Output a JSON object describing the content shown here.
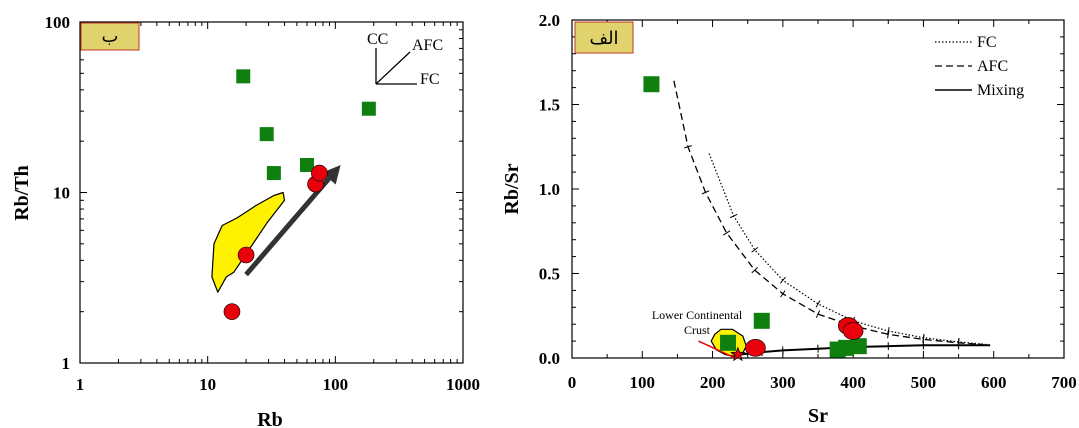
{
  "colors": {
    "green": "#0f7f0f",
    "red": "#e8000a",
    "yellow": "#fff200",
    "badge_bg": "#e0d36e",
    "badge_border": "#c23a2a",
    "arrow": "#333333"
  },
  "chart_data": [
    {
      "type": "scatter",
      "panel_label": "ب",
      "xlabel": "Rb",
      "ylabel": "Rb/Th",
      "xscale": "log",
      "yscale": "log",
      "xlim": [
        1,
        1000
      ],
      "ylim": [
        1,
        100
      ],
      "xticks": [
        {
          "v": 1,
          "t": "1"
        },
        {
          "v": 10,
          "t": "10"
        },
        {
          "v": 100,
          "t": "100"
        },
        {
          "v": 1000,
          "t": "1000"
        }
      ],
      "yticks": [
        {
          "v": 1,
          "t": "1"
        },
        {
          "v": 10,
          "t": "10"
        },
        {
          "v": 100,
          "t": "100"
        }
      ],
      "series": [
        {
          "marker": "square",
          "color": "green",
          "points": [
            [
              19,
              48
            ],
            [
              29,
              22
            ],
            [
              33,
              13
            ],
            [
              60,
              14.5
            ],
            [
              183,
              31
            ]
          ]
        },
        {
          "marker": "circle",
          "color": "red",
          "points": [
            [
              15.5,
              2
            ],
            [
              20,
              4.3
            ],
            [
              70,
              11.2
            ],
            [
              75,
              13
            ]
          ]
        }
      ],
      "vector_labels": {
        "cc": "CC",
        "afc": "AFC",
        "fc": "FC"
      },
      "field_polygon": [
        [
          14,
          3.2
        ],
        [
          12,
          2.6
        ],
        [
          10.8,
          3.2
        ],
        [
          11.2,
          5
        ],
        [
          13,
          6.4
        ],
        [
          17,
          7.1
        ],
        [
          24,
          8.4
        ],
        [
          33,
          9.6
        ],
        [
          39,
          10
        ],
        [
          40,
          9
        ],
        [
          29,
          6.6
        ],
        [
          21,
          4.6
        ],
        [
          16,
          3.4
        ]
      ],
      "trend_arrow": [
        [
          20,
          3.3
        ],
        [
          110,
          14.5
        ]
      ]
    },
    {
      "type": "scatter",
      "panel_label": "الف",
      "xlabel": "Sr",
      "ylabel": "Rb/Sr",
      "xlim": [
        0,
        700
      ],
      "ylim": [
        0,
        2.0
      ],
      "xticks": [
        {
          "v": 0,
          "t": "0"
        },
        {
          "v": 100,
          "t": "100"
        },
        {
          "v": 200,
          "t": "200"
        },
        {
          "v": 300,
          "t": "300"
        },
        {
          "v": 400,
          "t": "400"
        },
        {
          "v": 500,
          "t": "500"
        },
        {
          "v": 600,
          "t": "600"
        },
        {
          "v": 700,
          "t": "700"
        }
      ],
      "yticks": [
        {
          "v": 0,
          "t": "0.0"
        },
        {
          "v": 0.5,
          "t": "0.5"
        },
        {
          "v": 1.0,
          "t": "1.0"
        },
        {
          "v": 1.5,
          "t": "1.5"
        },
        {
          "v": 2.0,
          "t": "2.0"
        }
      ],
      "legend": [
        {
          "label": "FC",
          "style": "dotted"
        },
        {
          "label": "AFC",
          "style": "dashed"
        },
        {
          "label": "Mixing",
          "style": "solid"
        }
      ],
      "series": [
        {
          "marker": "square",
          "color": "green",
          "points": [
            [
              113,
              1.62
            ],
            [
              222,
              0.09
            ],
            [
              270,
              0.22
            ],
            [
              378,
              0.05
            ],
            [
              390,
              0.06
            ],
            [
              408,
              0.07
            ]
          ]
        },
        {
          "marker": "circle",
          "color": "red",
          "points": [
            [
              261,
              0.06
            ],
            [
              393,
              0.19
            ],
            [
              400,
              0.16
            ]
          ]
        }
      ],
      "curves": {
        "fc": [
          [
            195,
            1.21
          ],
          [
            230,
            0.84
          ],
          [
            260,
            0.64
          ],
          [
            300,
            0.46
          ],
          [
            350,
            0.32
          ],
          [
            400,
            0.22
          ],
          [
            450,
            0.16
          ],
          [
            500,
            0.12
          ],
          [
            550,
            0.095
          ],
          [
            590,
            0.08
          ]
        ],
        "afc": [
          [
            145,
            1.64
          ],
          [
            165,
            1.25
          ],
          [
            190,
            0.98
          ],
          [
            220,
            0.74
          ],
          [
            260,
            0.52
          ],
          [
            300,
            0.38
          ],
          [
            350,
            0.26
          ],
          [
            400,
            0.19
          ],
          [
            450,
            0.14
          ],
          [
            500,
            0.11
          ],
          [
            550,
            0.09
          ],
          [
            585,
            0.08
          ]
        ],
        "mixing": [
          [
            238,
            0.02
          ],
          [
            270,
            0.035
          ],
          [
            300,
            0.045
          ],
          [
            350,
            0.055
          ],
          [
            400,
            0.065
          ],
          [
            450,
            0.07
          ],
          [
            500,
            0.075
          ],
          [
            550,
            0.075
          ],
          [
            595,
            0.075
          ]
        ]
      },
      "crust_label": [
        "Lower Continental",
        "Crust"
      ],
      "crust_polygon": [
        [
          198,
          0.1
        ],
        [
          203,
          0.14
        ],
        [
          212,
          0.17
        ],
        [
          228,
          0.17
        ],
        [
          243,
          0.13
        ],
        [
          248,
          0.07
        ],
        [
          243,
          0.03
        ],
        [
          232,
          0.01
        ],
        [
          218,
          0.02
        ],
        [
          205,
          0.05
        ]
      ],
      "crust_star": [
        236,
        0.02
      ]
    }
  ]
}
